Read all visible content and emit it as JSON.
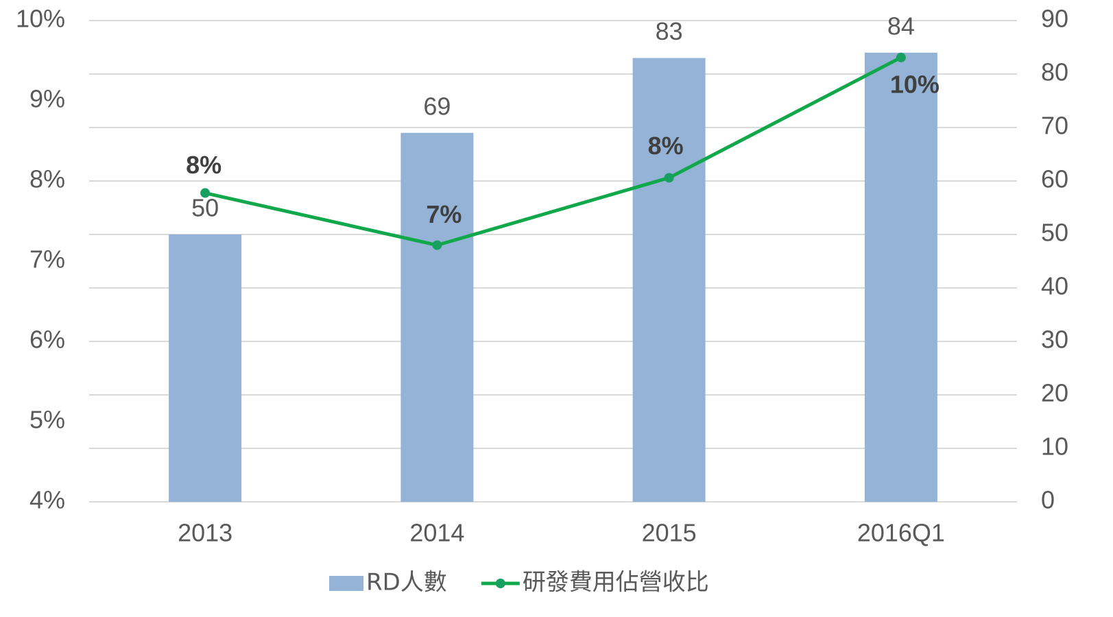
{
  "chart_data": {
    "type": "combo",
    "categories": [
      "2013",
      "2014",
      "2015",
      "2016Q1"
    ],
    "series": [
      {
        "name": "RD人數",
        "type": "bar",
        "axis": "y2",
        "color": "#95b3d7",
        "values": [
          50,
          69,
          83,
          84
        ]
      },
      {
        "name": "研發費用佔營收比",
        "type": "line",
        "axis": "y",
        "color": "#10a84a",
        "values": [
          7.85,
          7.2,
          8.04,
          9.54
        ],
        "value_labels": [
          "8%",
          "7%",
          "8%",
          "10%"
        ]
      }
    ],
    "ylim": [
      4,
      10
    ],
    "yticks": [
      {
        "value": 4,
        "label": "4%"
      },
      {
        "value": 5,
        "label": "5%"
      },
      {
        "value": 6,
        "label": "6%"
      },
      {
        "value": 7,
        "label": "7%"
      },
      {
        "value": 8,
        "label": "8%"
      },
      {
        "value": 9,
        "label": "9%"
      },
      {
        "value": 10,
        "label": "10%"
      }
    ],
    "y2lim": [
      0,
      90
    ],
    "y2ticks": [
      0,
      10,
      20,
      30,
      40,
      50,
      60,
      70,
      80,
      90
    ],
    "grid": true,
    "legend": "bottom"
  }
}
